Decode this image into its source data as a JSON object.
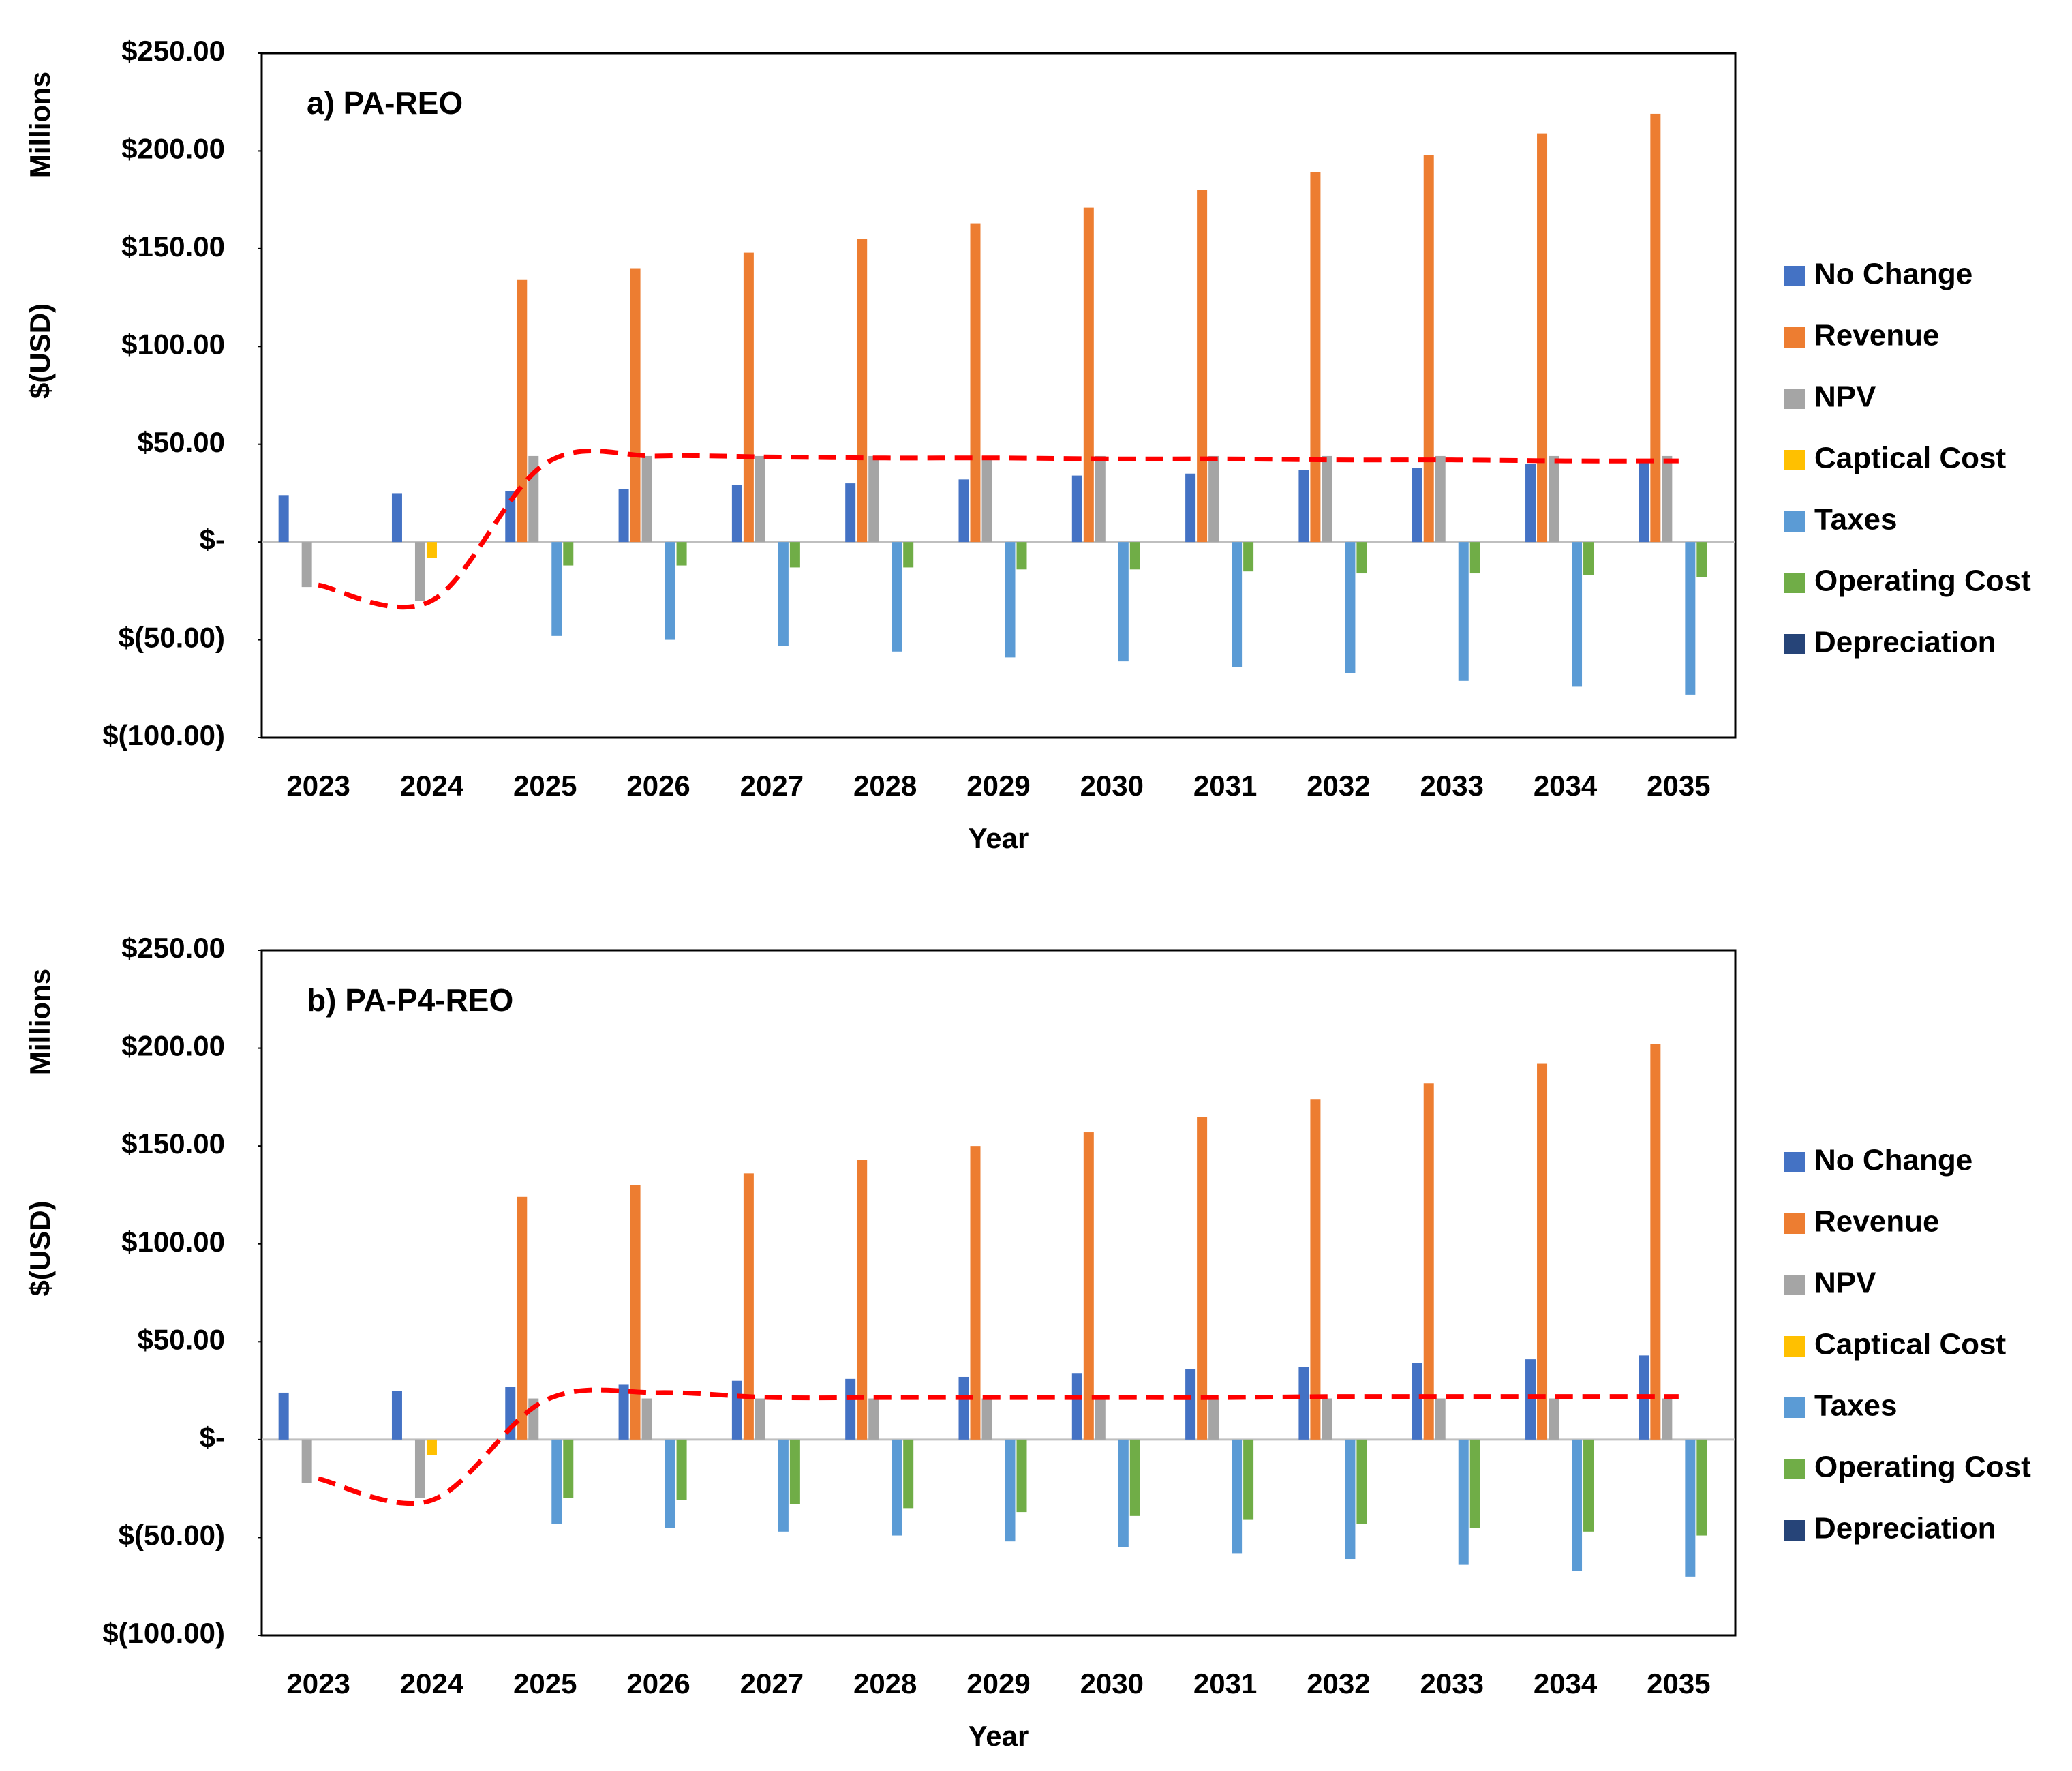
{
  "chart_data": [
    {
      "type": "bar",
      "title": "a) PA-REO",
      "x_label": "Year",
      "y_label": "$(USD)",
      "y_unit_label": "Millions",
      "categories": [
        "2023",
        "2024",
        "2025",
        "2026",
        "2027",
        "2028",
        "2029",
        "2030",
        "2031",
        "2032",
        "2033",
        "2034",
        "2035"
      ],
      "ylim": [
        -100,
        250
      ],
      "yticks": [
        {
          "value": 250,
          "label": "$250.00"
        },
        {
          "value": 200,
          "label": "$200.00"
        },
        {
          "value": 150,
          "label": "$150.00"
        },
        {
          "value": 100,
          "label": "$100.00"
        },
        {
          "value": 50,
          "label": "$50.00"
        },
        {
          "value": 0,
          "label": "$-"
        },
        {
          "value": -50,
          "label": "$(50.00)"
        },
        {
          "value": -100,
          "label": "$(100.00)"
        }
      ],
      "series": [
        {
          "name": "No Change",
          "color": "#4472c4",
          "values": [
            24,
            25,
            26,
            27,
            29,
            30,
            32,
            34,
            35,
            37,
            38,
            40,
            42
          ]
        },
        {
          "name": "Revenue",
          "color": "#ed7d31",
          "values": [
            0,
            0,
            134,
            140,
            148,
            155,
            163,
            171,
            180,
            189,
            198,
            209,
            219
          ]
        },
        {
          "name": "NPV",
          "color": "#a5a5a5",
          "values": [
            -23,
            -30,
            44,
            44,
            44,
            44,
            44,
            44,
            44,
            44,
            44,
            44,
            44
          ]
        },
        {
          "name": "Captical Cost",
          "color": "#ffc000",
          "values": [
            0,
            -8,
            0,
            0,
            0,
            0,
            0,
            0,
            0,
            0,
            0,
            0,
            0
          ]
        },
        {
          "name": "Taxes",
          "color": "#5b9bd5",
          "values": [
            0,
            0,
            -48,
            -50,
            -53,
            -56,
            -59,
            -61,
            -64,
            -67,
            -71,
            -74,
            -78
          ]
        },
        {
          "name": "Operating Cost",
          "color": "#70ad47",
          "values": [
            0,
            0,
            -12,
            -12,
            -13,
            -13,
            -14,
            -14,
            -15,
            -16,
            -16,
            -17,
            -18
          ]
        },
        {
          "name": "Depreciation",
          "color": "#264478",
          "values": [
            0,
            0,
            0,
            0,
            0,
            0,
            0,
            0,
            0,
            0,
            0,
            0,
            0
          ]
        }
      ],
      "trend_line": {
        "color": "#ff0000",
        "values": [
          -22,
          -30,
          40,
          44,
          43.5,
          43,
          43,
          42.5,
          42.5,
          42,
          42,
          41.5,
          41.5
        ]
      }
    },
    {
      "type": "bar",
      "title": "b) PA-P4-REO",
      "x_label": "Year",
      "y_label": "$(USD)",
      "y_unit_label": "Millions",
      "categories": [
        "2023",
        "2024",
        "2025",
        "2026",
        "2027",
        "2028",
        "2029",
        "2030",
        "2031",
        "2032",
        "2033",
        "2034",
        "2035"
      ],
      "ylim": [
        -100,
        250
      ],
      "yticks": [
        {
          "value": 250,
          "label": "$250.00"
        },
        {
          "value": 200,
          "label": "$200.00"
        },
        {
          "value": 150,
          "label": "$150.00"
        },
        {
          "value": 100,
          "label": "$100.00"
        },
        {
          "value": 50,
          "label": "$50.00"
        },
        {
          "value": 0,
          "label": "$-"
        },
        {
          "value": -50,
          "label": "$(50.00)"
        },
        {
          "value": -100,
          "label": "$(100.00)"
        }
      ],
      "series": [
        {
          "name": "No Change",
          "color": "#4472c4",
          "values": [
            24,
            25,
            27,
            28,
            30,
            31,
            32,
            34,
            36,
            37,
            39,
            41,
            43
          ]
        },
        {
          "name": "Revenue",
          "color": "#ed7d31",
          "values": [
            0,
            0,
            124,
            130,
            136,
            143,
            150,
            157,
            165,
            174,
            182,
            192,
            202
          ]
        },
        {
          "name": "NPV",
          "color": "#a5a5a5",
          "values": [
            -22,
            -30,
            21,
            21,
            21,
            21,
            21,
            21,
            21,
            21,
            21,
            21,
            21
          ]
        },
        {
          "name": "Captical Cost",
          "color": "#ffc000",
          "values": [
            0,
            -8,
            0,
            0,
            0,
            0,
            0,
            0,
            0,
            0,
            0,
            0,
            0
          ]
        },
        {
          "name": "Taxes",
          "color": "#5b9bd5",
          "values": [
            0,
            0,
            -43,
            -45,
            -47,
            -49,
            -52,
            -55,
            -58,
            -61,
            -64,
            -67,
            -70
          ]
        },
        {
          "name": "Operating Cost",
          "color": "#70ad47",
          "values": [
            0,
            0,
            -30,
            -31,
            -33,
            -35,
            -37,
            -39,
            -41,
            -43,
            -45,
            -47,
            -49
          ]
        },
        {
          "name": "Depreciation",
          "color": "#264478",
          "values": [
            0,
            0,
            0,
            0,
            0,
            0,
            0,
            0,
            0,
            0,
            0,
            0,
            0
          ]
        }
      ],
      "trend_line": {
        "color": "#ff0000",
        "values": [
          -20,
          -31,
          20,
          24,
          21.5,
          21.5,
          21.5,
          21.5,
          21.5,
          22,
          22,
          22,
          22
        ]
      }
    }
  ]
}
